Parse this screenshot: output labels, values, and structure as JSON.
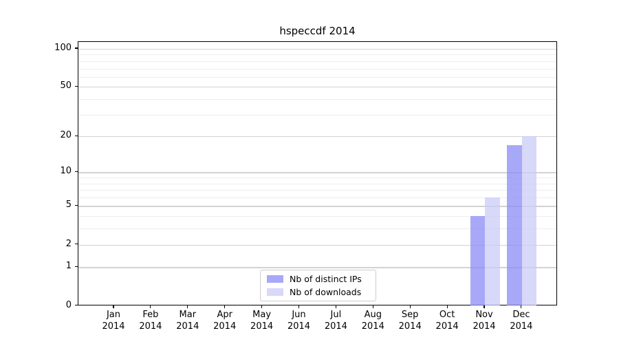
{
  "chart_data": {
    "type": "bar",
    "title": "hspeccdf 2014",
    "categories": [
      "Jan 2014",
      "Feb 2014",
      "Mar 2014",
      "Apr 2014",
      "May 2014",
      "Jun 2014",
      "Jul 2014",
      "Aug 2014",
      "Sep 2014",
      "Oct 2014",
      "Nov 2014",
      "Dec 2014"
    ],
    "series": [
      {
        "name": "Nb of distinct IPs",
        "color": "#8b8bf6",
        "values": [
          0,
          0,
          0,
          0,
          0,
          0,
          0,
          0,
          0,
          0,
          4,
          17
        ]
      },
      {
        "name": "Nb of downloads",
        "color": "#cbcbf5",
        "values": [
          0,
          0,
          0,
          0,
          0,
          0,
          0,
          0,
          0,
          0,
          6,
          20
        ]
      }
    ],
    "bar_opacity": 0.75,
    "bar_width": 21.5,
    "y_scale": "log10(1+y)",
    "y_ticks": [
      0,
      1,
      2,
      5,
      10,
      20,
      50,
      100
    ],
    "y_minor_gridlines": [
      3,
      4,
      6,
      7,
      8,
      9,
      30,
      40,
      60,
      70,
      80,
      90
    ],
    "ylim": [
      0,
      113
    ],
    "xlabel": "",
    "ylabel": "",
    "grid": "horizontal",
    "legend_position": "lower center",
    "colors": {
      "major_grid": "#d2d2d2",
      "minor_grid": "#ededed",
      "axis": "#000000",
      "background": "#ffffff"
    }
  }
}
